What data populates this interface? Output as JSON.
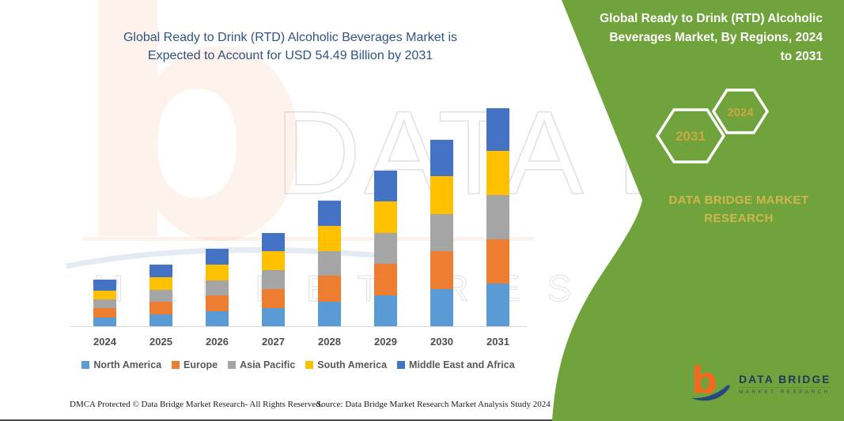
{
  "main_title": {
    "line1": "Global Ready to Drink (RTD) Alcoholic Beverages Market is",
    "line2": "Expected to Account for USD 54.49 Billion by 2031"
  },
  "side_panel": {
    "title_line1": "Global Ready to Drink (RTD) Alcoholic",
    "title_line2": "Beverages Market, By Regions, 2024",
    "title_line3": "to 2031",
    "hexagons": [
      {
        "label": "2031"
      },
      {
        "label": "2024"
      }
    ],
    "brand_line1": "DATA BRIDGE MARKET",
    "brand_line2": "RESEARCH",
    "logo": {
      "name": "DATA BRIDGE",
      "tagline": "MARKET RESEARCH"
    },
    "colors": {
      "panel_green": "#71A33C",
      "gold": "#C9A843",
      "brand_gold": "#CDB84E"
    }
  },
  "watermark": {
    "big_text": "DATA BRIDGE",
    "sub_text": "MARKET RESEARCH",
    "letter": "b"
  },
  "footer": {
    "dmca": "DMCA Protected © Data Bridge Market Research-  All Rights Reserved.",
    "source": "Source: Data Bridge Market Research  Market Analysis Study 2024"
  },
  "chart_data": {
    "type": "bar",
    "stacked": true,
    "title": "Global Ready to Drink (RTD) Alcoholic Beverages Market is Expected to Account for USD 54.49 Billion by 2031",
    "unit": "USD Billion",
    "categories": [
      "2024",
      "2025",
      "2026",
      "2027",
      "2028",
      "2029",
      "2030",
      "2031"
    ],
    "series": [
      {
        "name": "North America",
        "color": "#5B9BD5",
        "values": [
          2.2,
          3.0,
          3.8,
          4.6,
          6.2,
          7.7,
          9.2,
          10.6
        ]
      },
      {
        "name": "Europe",
        "color": "#ED7D31",
        "values": [
          2.3,
          3.1,
          3.9,
          4.7,
          6.4,
          7.9,
          9.5,
          11.2
        ]
      },
      {
        "name": "Asia Pacific",
        "color": "#A5A5A5",
        "values": [
          2.2,
          3.0,
          3.8,
          4.7,
          6.2,
          7.8,
          9.4,
          11.1
        ]
      },
      {
        "name": "South America",
        "color": "#FFC000",
        "values": [
          2.3,
          3.1,
          3.9,
          4.7,
          6.3,
          7.8,
          9.4,
          10.9
        ]
      },
      {
        "name": "Middle East and Africa",
        "color": "#4472C4",
        "values": [
          2.6,
          3.2,
          4.0,
          4.7,
          6.3,
          7.7,
          9.2,
          10.7
        ]
      }
    ],
    "totals_by_year": [
      11.6,
      15.4,
      19.4,
      23.4,
      31.4,
      38.9,
      46.7,
      54.49
    ],
    "highlight_total": "USD 54.49 Billion by 2031",
    "axis": {
      "y_axis_shown": false,
      "gridlines": false,
      "x_labels_shown": true
    },
    "legend_position": "bottom"
  }
}
